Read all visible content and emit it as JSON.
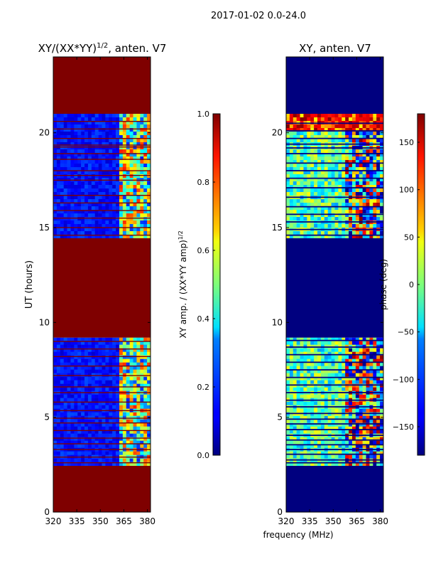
{
  "suptitle": "2017-01-02 0.0-24.0",
  "colors": {
    "saturated_red": "#7f0000",
    "masked_blue": "#00007f",
    "axis": "#000000",
    "background": "#ffffff"
  },
  "chart_data": [
    {
      "type": "heatmap",
      "title_main": "XY/(XX*YY)",
      "title_sup": "1/2",
      "title_rest": ", anten. V7",
      "xlabel": "",
      "ylabel": "UT (hours)",
      "xlim": [
        320,
        382
      ],
      "ylim": [
        0,
        24
      ],
      "xticks": [
        "320",
        "335",
        "350",
        "365",
        "380"
      ],
      "yticks": [
        "0",
        "5",
        "10",
        "15",
        "20"
      ],
      "colormap": "jet",
      "colorbar": {
        "label_main": "XY amp. / (XX*YY amp)",
        "label_sup": "1/2",
        "range": [
          0.0,
          1.0
        ],
        "ticks": [
          "0.0",
          "0.2",
          "0.4",
          "0.6",
          "0.8",
          "1.0"
        ]
      },
      "rows": [
        {
          "from": 0.0,
          "to": 2.45,
          "kind": "sat"
        },
        {
          "from": 2.45,
          "to": 9.2,
          "kind": "data"
        },
        {
          "from": 9.2,
          "to": 14.45,
          "kind": "sat"
        },
        {
          "from": 14.45,
          "to": 21.0,
          "kind": "data"
        },
        {
          "from": 21.0,
          "to": 24.0,
          "kind": "sat"
        }
      ],
      "red_lines": [
        2.6,
        2.9,
        3.3,
        3.6,
        3.9,
        4.3,
        4.7,
        4.95,
        5.35,
        5.8,
        6.3,
        6.6,
        7.2,
        7.7,
        8.2,
        8.6,
        9.0,
        14.6,
        15.0,
        15.5,
        15.9,
        16.3,
        16.7,
        17.5,
        17.75,
        18.0,
        18.6,
        18.9,
        19.25,
        19.35,
        19.7,
        20.2,
        20.6
      ]
    },
    {
      "type": "heatmap",
      "title": "XY, anten. V7",
      "xlabel": "frequency (MHz)",
      "ylabel": "",
      "xlim": [
        320,
        382
      ],
      "ylim": [
        0,
        24
      ],
      "xticks": [
        "320",
        "335",
        "350",
        "365",
        "380"
      ],
      "yticks": [
        "0",
        "5",
        "10",
        "15",
        "20"
      ],
      "colormap": "jet",
      "colorbar": {
        "label": "phase (deg)",
        "range": [
          -180,
          180
        ],
        "ticks": [
          "150",
          "100",
          "50",
          "0",
          "−50",
          "−100",
          "−150"
        ]
      },
      "rows": [
        {
          "from": 0.0,
          "to": 2.45,
          "kind": "mask"
        },
        {
          "from": 2.45,
          "to": 9.2,
          "kind": "data"
        },
        {
          "from": 9.2,
          "to": 14.45,
          "kind": "mask"
        },
        {
          "from": 14.45,
          "to": 21.0,
          "kind": "data"
        },
        {
          "from": 21.0,
          "to": 24.0,
          "kind": "mask"
        }
      ],
      "dark_lines": [
        2.6,
        2.75,
        3.05,
        3.3,
        3.55,
        3.8,
        4.05,
        4.35,
        4.65,
        4.9,
        5.2,
        5.55,
        5.9,
        6.3,
        6.7,
        7.1,
        7.5,
        7.9,
        8.3,
        8.7,
        9.05,
        14.6,
        14.9,
        15.3,
        15.7,
        16.1,
        16.6,
        17.1,
        17.6,
        18.0,
        18.4,
        18.9,
        19.2,
        19.4,
        19.7,
        20.1,
        20.5
      ]
    }
  ]
}
